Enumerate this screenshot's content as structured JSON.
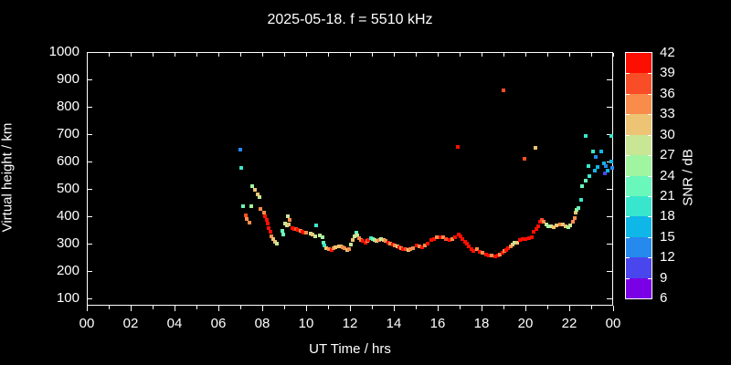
{
  "title": "2025-05-18. f = 5510 kHz",
  "chart_data": {
    "type": "scatter",
    "title": "2025-05-18. f = 5510 kHz",
    "xlabel": "UT Time / hrs",
    "ylabel": "Virtual height / km",
    "xlim_hours": [
      0,
      24
    ],
    "ylim_km": [
      73,
      1000
    ],
    "grid": false,
    "x_ticks": {
      "labeled_hours": [
        0,
        2,
        4,
        6,
        8,
        10,
        12,
        14,
        16,
        18,
        20,
        22,
        24
      ],
      "labels": [
        "00",
        "02",
        "04",
        "06",
        "08",
        "10",
        "12",
        "14",
        "16",
        "18",
        "20",
        "22",
        "00"
      ],
      "minor_every_hours": 1
    },
    "y_ticks_km": [
      100,
      200,
      300,
      400,
      500,
      600,
      700,
      800,
      900,
      1000
    ],
    "colorbar": {
      "label": "SNR / dB",
      "tick_values": [
        42,
        39,
        36,
        33,
        30,
        27,
        24,
        21,
        18,
        15,
        12,
        9,
        6
      ],
      "bin_min": 6,
      "bin_size": 3,
      "bin_colors_low_to_high": [
        "#7a00e6",
        "#4a46ed",
        "#2589ee",
        "#0fb6e8",
        "#38e6cd",
        "#69f7bb",
        "#a0f5a0",
        "#c9e695",
        "#edc473",
        "#f98c4a",
        "#f94d28",
        "#fc0f00"
      ]
    },
    "points_hour_km_snr": [
      [
        7.0,
        645,
        13
      ],
      [
        7.05,
        578,
        19
      ],
      [
        7.13,
        437,
        22
      ],
      [
        7.26,
        403,
        37
      ],
      [
        7.3,
        390,
        34
      ],
      [
        7.4,
        377,
        34
      ],
      [
        7.52,
        437,
        25
      ],
      [
        7.54,
        510,
        25
      ],
      [
        7.68,
        496,
        31
      ],
      [
        7.79,
        481,
        31
      ],
      [
        7.86,
        470,
        28
      ],
      [
        7.9,
        426,
        34
      ],
      [
        8.08,
        412,
        34
      ],
      [
        8.13,
        399,
        40
      ],
      [
        8.19,
        388,
        40
      ],
      [
        8.24,
        373,
        40
      ],
      [
        8.3,
        357,
        40
      ],
      [
        8.36,
        342,
        40
      ],
      [
        8.42,
        328,
        34
      ],
      [
        8.49,
        316,
        31
      ],
      [
        8.58,
        308,
        31
      ],
      [
        8.68,
        300,
        28
      ],
      [
        8.92,
        348,
        22
      ],
      [
        8.97,
        332,
        22
      ],
      [
        9.03,
        373,
        28
      ],
      [
        9.12,
        368,
        28
      ],
      [
        9.22,
        370,
        31
      ],
      [
        9.17,
        400,
        28
      ],
      [
        9.25,
        388,
        34
      ],
      [
        9.36,
        357,
        40
      ],
      [
        9.45,
        355,
        40
      ],
      [
        9.55,
        353,
        37
      ],
      [
        9.64,
        350,
        40
      ],
      [
        9.73,
        347,
        34
      ],
      [
        9.82,
        343,
        40
      ],
      [
        9.91,
        341,
        40
      ],
      [
        10.02,
        340,
        34
      ],
      [
        10.2,
        338,
        28
      ],
      [
        10.3,
        333,
        31
      ],
      [
        10.43,
        327,
        28
      ],
      [
        10.46,
        366,
        19
      ],
      [
        10.63,
        331,
        28
      ],
      [
        10.75,
        323,
        25
      ],
      [
        10.8,
        304,
        22
      ],
      [
        10.84,
        293,
        19
      ],
      [
        10.93,
        284,
        31
      ],
      [
        11.06,
        279,
        34
      ],
      [
        11.15,
        276,
        40
      ],
      [
        11.25,
        282,
        34
      ],
      [
        11.35,
        287,
        31
      ],
      [
        11.48,
        290,
        31
      ],
      [
        11.57,
        290,
        31
      ],
      [
        11.67,
        287,
        34
      ],
      [
        11.76,
        282,
        34
      ],
      [
        11.87,
        276,
        31
      ],
      [
        11.95,
        279,
        34
      ],
      [
        12.06,
        296,
        28
      ],
      [
        12.13,
        312,
        31
      ],
      [
        12.2,
        327,
        28
      ],
      [
        12.28,
        340,
        22
      ],
      [
        12.33,
        331,
        28
      ],
      [
        12.43,
        320,
        34
      ],
      [
        12.52,
        312,
        34
      ],
      [
        12.58,
        309,
        40
      ],
      [
        12.7,
        304,
        40
      ],
      [
        12.78,
        309,
        34
      ],
      [
        12.85,
        315,
        40
      ],
      [
        12.94,
        320,
        19
      ],
      [
        13.03,
        316,
        22
      ],
      [
        13.12,
        312,
        25
      ],
      [
        13.22,
        309,
        31
      ],
      [
        13.32,
        312,
        34
      ],
      [
        13.42,
        316,
        28
      ],
      [
        13.53,
        312,
        31
      ],
      [
        13.63,
        309,
        34
      ],
      [
        13.73,
        304,
        40
      ],
      [
        13.85,
        301,
        34
      ],
      [
        13.95,
        298,
        40
      ],
      [
        14.05,
        294,
        34
      ],
      [
        14.15,
        290,
        31
      ],
      [
        14.23,
        287,
        40
      ],
      [
        14.33,
        284,
        34
      ],
      [
        14.42,
        281,
        40
      ],
      [
        14.55,
        279,
        37
      ],
      [
        14.65,
        277,
        31
      ],
      [
        14.75,
        281,
        34
      ],
      [
        14.89,
        284,
        34
      ],
      [
        15.03,
        292,
        40
      ],
      [
        15.15,
        290,
        34
      ],
      [
        15.28,
        288,
        40
      ],
      [
        15.42,
        294,
        34
      ],
      [
        15.56,
        301,
        40
      ],
      [
        15.7,
        314,
        40
      ],
      [
        15.83,
        318,
        40
      ],
      [
        15.97,
        322,
        34
      ],
      [
        16.11,
        323,
        40
      ],
      [
        16.25,
        322,
        34
      ],
      [
        16.39,
        318,
        37
      ],
      [
        16.53,
        314,
        40
      ],
      [
        16.67,
        318,
        34
      ],
      [
        16.81,
        322,
        40
      ],
      [
        16.93,
        655,
        40
      ],
      [
        16.95,
        334,
        40
      ],
      [
        17.04,
        326,
        40
      ],
      [
        17.13,
        318,
        40
      ],
      [
        17.23,
        307,
        40
      ],
      [
        17.33,
        299,
        40
      ],
      [
        17.43,
        290,
        40
      ],
      [
        17.54,
        281,
        40
      ],
      [
        17.64,
        273,
        40
      ],
      [
        17.78,
        279,
        34
      ],
      [
        17.92,
        270,
        40
      ],
      [
        18.06,
        266,
        34
      ],
      [
        18.2,
        261,
        40
      ],
      [
        18.33,
        258,
        40
      ],
      [
        18.47,
        257,
        34
      ],
      [
        18.61,
        255,
        40
      ],
      [
        18.75,
        257,
        40
      ],
      [
        18.85,
        260,
        34
      ],
      [
        18.95,
        266,
        40
      ],
      [
        19.02,
        860,
        37
      ],
      [
        19.05,
        272,
        34
      ],
      [
        19.13,
        278,
        40
      ],
      [
        19.22,
        284,
        40
      ],
      [
        19.32,
        290,
        34
      ],
      [
        19.42,
        298,
        31
      ],
      [
        19.52,
        302,
        28
      ],
      [
        19.62,
        305,
        31
      ],
      [
        19.75,
        312,
        40
      ],
      [
        19.88,
        316,
        40
      ],
      [
        19.94,
        609,
        37
      ],
      [
        20.0,
        316,
        40
      ],
      [
        20.15,
        320,
        40
      ],
      [
        20.28,
        323,
        40
      ],
      [
        20.38,
        342,
        40
      ],
      [
        20.45,
        651,
        31
      ],
      [
        20.48,
        353,
        40
      ],
      [
        20.57,
        364,
        40
      ],
      [
        20.66,
        379,
        40
      ],
      [
        20.74,
        386,
        37
      ],
      [
        20.84,
        379,
        34
      ],
      [
        20.95,
        371,
        28
      ],
      [
        21.05,
        364,
        25
      ],
      [
        21.15,
        362,
        28
      ],
      [
        21.29,
        360,
        31
      ],
      [
        21.43,
        368,
        31
      ],
      [
        21.57,
        371,
        34
      ],
      [
        21.71,
        371,
        31
      ],
      [
        21.85,
        364,
        31
      ],
      [
        21.96,
        360,
        25
      ],
      [
        22.06,
        368,
        28
      ],
      [
        22.15,
        379,
        34
      ],
      [
        22.24,
        393,
        34
      ],
      [
        22.3,
        412,
        31
      ],
      [
        22.35,
        423,
        25
      ],
      [
        22.4,
        429,
        22
      ],
      [
        22.54,
        459,
        19
      ],
      [
        22.57,
        510,
        22
      ],
      [
        22.73,
        529,
        22
      ],
      [
        22.77,
        695,
        19
      ],
      [
        22.88,
        584,
        19
      ],
      [
        22.92,
        546,
        19
      ],
      [
        23.1,
        637,
        19
      ],
      [
        23.15,
        566,
        16
      ],
      [
        23.22,
        618,
        13
      ],
      [
        23.3,
        581,
        16
      ],
      [
        23.47,
        637,
        16
      ],
      [
        23.6,
        592,
        16
      ],
      [
        23.62,
        557,
        10
      ],
      [
        23.66,
        584,
        13
      ],
      [
        23.75,
        566,
        16
      ],
      [
        23.9,
        695,
        19
      ],
      [
        23.92,
        600,
        16
      ],
      [
        23.95,
        578,
        13
      ]
    ]
  }
}
